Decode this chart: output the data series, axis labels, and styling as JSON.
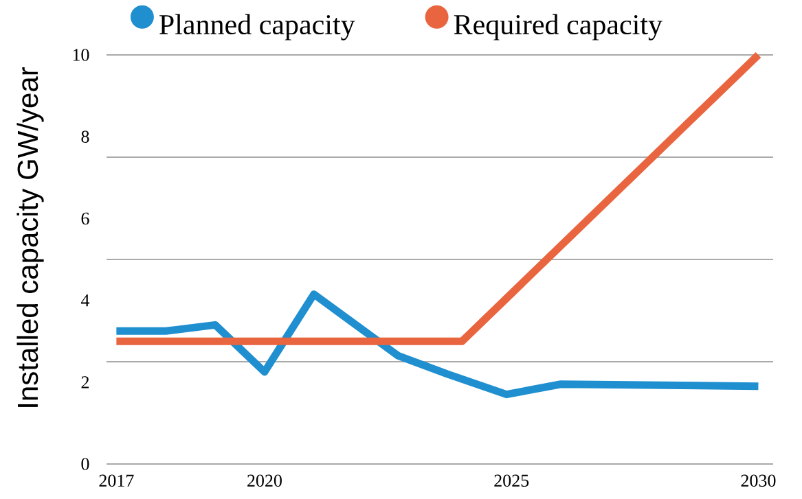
{
  "chart_data": {
    "type": "line",
    "ylabel": "Installed capacity GW/year",
    "xlim": [
      2016.8,
      2030.3
    ],
    "xticks": [
      2017,
      2020,
      2025,
      2030
    ],
    "ylim": [
      0,
      10
    ],
    "yticks": [
      0,
      2,
      4,
      6,
      8,
      10
    ],
    "legend": "top",
    "line_style": "solid",
    "ref_lines": [
      {
        "axis": "y",
        "value": 2.5,
        "color": "#8c8c8c"
      },
      {
        "axis": "y",
        "value": 5,
        "color": "#8c8c8c"
      },
      {
        "axis": "y",
        "value": 7.5,
        "color": "#8c8c8c"
      },
      {
        "axis": "y",
        "value": 10,
        "color": "#8c8c8c"
      }
    ],
    "series": [
      {
        "name": "Planned capacity",
        "color": "#1f8fcf",
        "x": [
          2017,
          2018,
          2019,
          2020,
          2021,
          2022.7,
          2023.7,
          2024.9,
          2026,
          2030
        ],
        "values": [
          3.25,
          3.25,
          3.4,
          2.25,
          4.15,
          2.65,
          2.2,
          1.7,
          1.95,
          1.9
        ]
      },
      {
        "name": "Required capacity",
        "color": "#e9653f",
        "x": [
          2017,
          2024,
          2030
        ],
        "values": [
          3.0,
          3.0,
          10
        ]
      }
    ]
  }
}
